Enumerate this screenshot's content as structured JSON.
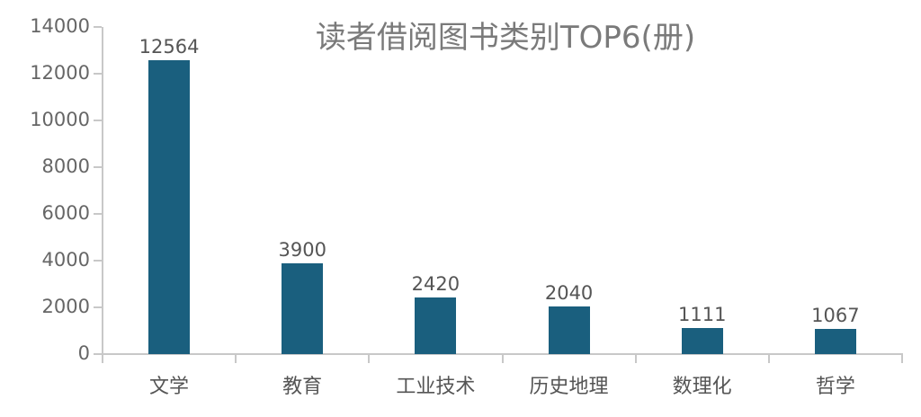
{
  "chart_data": {
    "type": "bar",
    "title": "读者借阅图书类别TOP6(册)",
    "categories": [
      "文学",
      "教育",
      "工业技术",
      "历史地理",
      "数理化",
      "哲学"
    ],
    "values": [
      12564,
      3900,
      2420,
      2040,
      1111,
      1067
    ],
    "xlabel": "",
    "ylabel": "",
    "ylim": [
      0,
      14000
    ],
    "yticks": [
      0,
      2000,
      4000,
      6000,
      8000,
      10000,
      12000,
      14000
    ],
    "grid": false,
    "legend": null,
    "bar_color": "#1a5f7e"
  }
}
